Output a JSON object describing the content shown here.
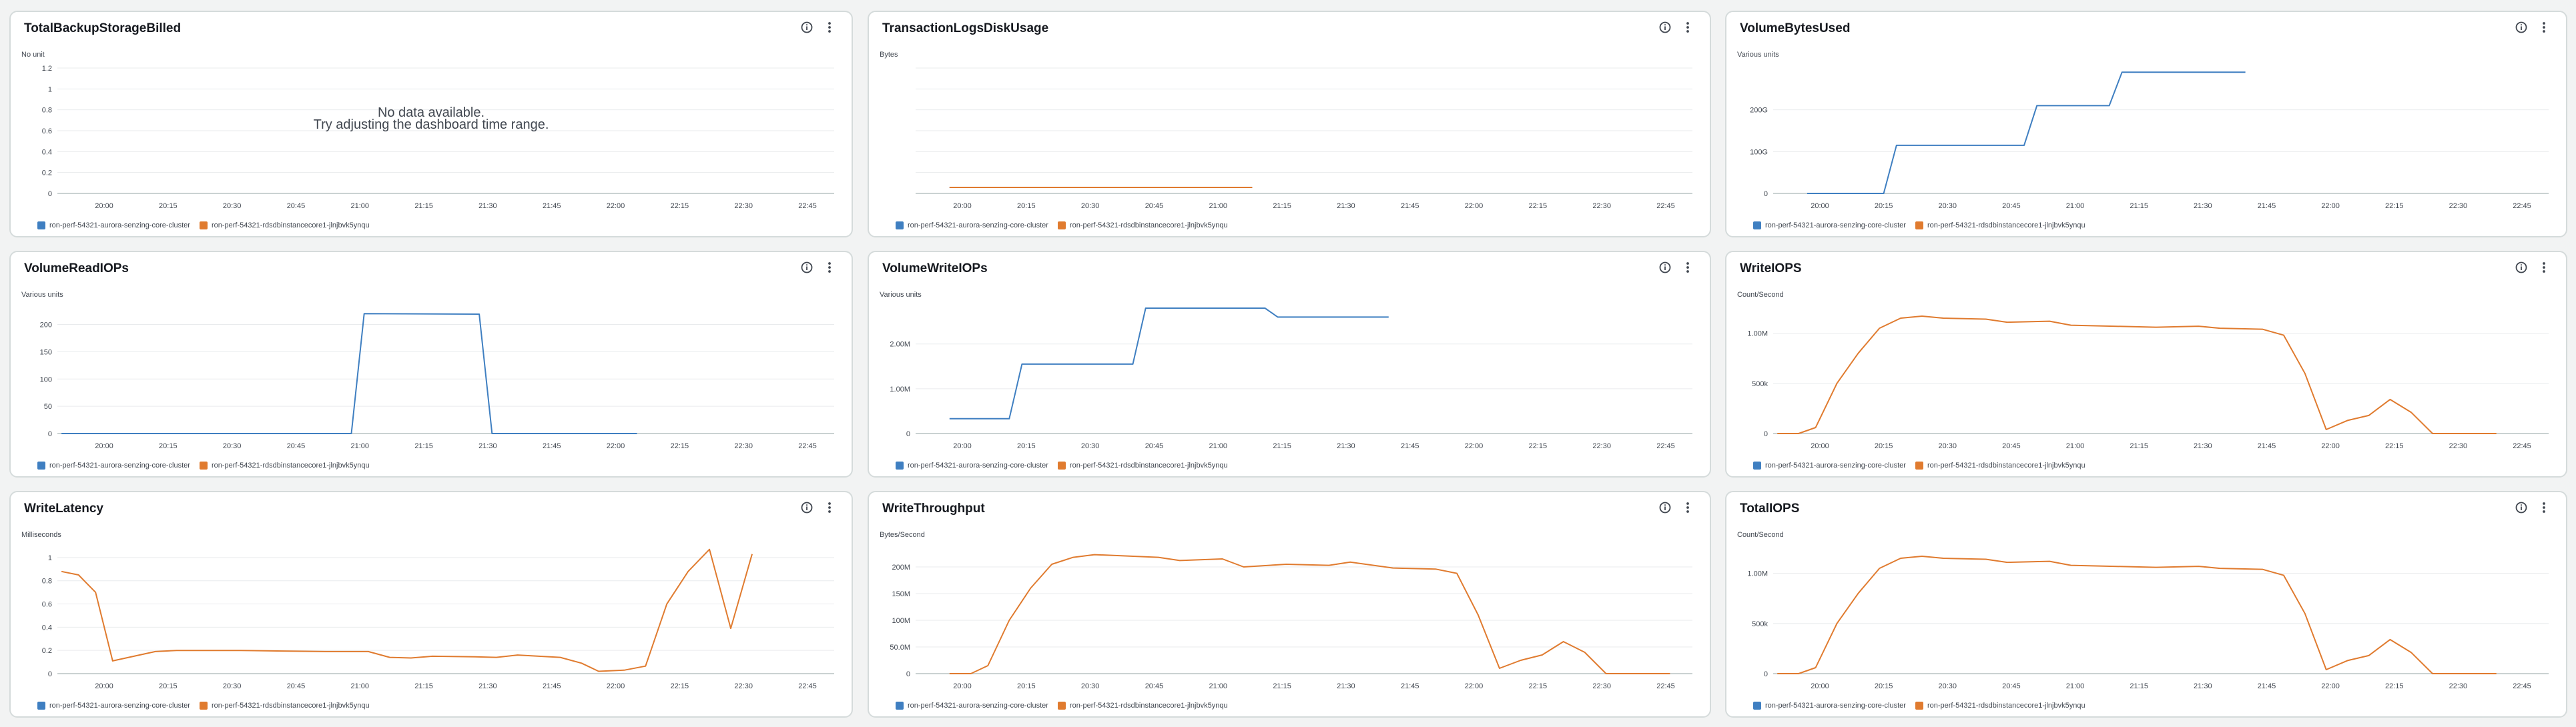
{
  "series_names": [
    "ron-perf-54321-aurora-senzing-core-cluster",
    "ron-perf-54321-rdsdbinstancecore1-jlnjbvk5ynqu"
  ],
  "series_colors": [
    "#3f7fc1",
    "#e07b2f"
  ],
  "x_ticks": [
    "20:00",
    "20:15",
    "20:30",
    "20:45",
    "21:00",
    "21:15",
    "21:30",
    "21:45",
    "22:00",
    "22:15",
    "22:30",
    "22:45"
  ],
  "panels": [
    {
      "title": "TotalBackupStorageBilled",
      "unit": "No unit",
      "no_data": [
        "No data available.",
        "Try adjusting the dashboard time range."
      ],
      "chart_data": {
        "type": "line",
        "y_ticks": [
          {
            "v": 0,
            "label": "0"
          },
          {
            "v": 0.2,
            "label": "0.2"
          },
          {
            "v": 0.4,
            "label": "0.4"
          },
          {
            "v": 0.6,
            "label": "0.6"
          },
          {
            "v": 0.8,
            "label": "0.8"
          },
          {
            "v": 1,
            "label": "1"
          },
          {
            "v": 1.2,
            "label": "1.2"
          }
        ],
        "ylim": [
          0,
          1.2
        ],
        "series": []
      }
    },
    {
      "title": "TransactionLogsDiskUsage",
      "unit": "Bytes",
      "chart_data": {
        "type": "line",
        "y_ticks": [],
        "ylim": [
          -0.05,
          1
        ],
        "series": [
          {
            "name": "ron-perf-54321-aurora-senzing-core-cluster",
            "points": [
              [
                -3,
                0
              ],
              [
                68,
                0
              ]
            ]
          },
          {
            "name": "ron-perf-54321-rdsdbinstancecore1-jlnjbvk5ynqu",
            "points": [
              [
                -3,
                0
              ],
              [
                68,
                0
              ]
            ]
          }
        ]
      }
    },
    {
      "title": "VolumeBytesUsed",
      "unit": "Various units",
      "chart_data": {
        "type": "line",
        "y_ticks": [
          {
            "v": 0,
            "label": "0"
          },
          {
            "v": 100,
            "label": "100G"
          },
          {
            "v": 200,
            "label": "200G"
          }
        ],
        "ylim": [
          0,
          300
        ],
        "series": [
          {
            "name": "ron-perf-54321-aurora-senzing-core-cluster",
            "points": [
              [
                -3,
                0
              ],
              [
                15,
                0
              ],
              [
                18,
                115
              ],
              [
                48,
                115
              ],
              [
                51,
                210
              ],
              [
                68,
                210
              ],
              [
                71,
                290
              ],
              [
                100,
                290
              ]
            ]
          }
        ]
      }
    },
    {
      "title": "VolumeReadIOPs",
      "unit": "Various units",
      "chart_data": {
        "type": "line",
        "y_ticks": [
          {
            "v": 0,
            "label": "0"
          },
          {
            "v": 50,
            "label": "50"
          },
          {
            "v": 100,
            "label": "100"
          },
          {
            "v": 150,
            "label": "150"
          },
          {
            "v": 200,
            "label": "200"
          }
        ],
        "ylim": [
          0,
          230
        ],
        "series": [
          {
            "name": "ron-perf-54321-aurora-senzing-core-cluster",
            "points": [
              [
                -10,
                0
              ],
              [
                58,
                0
              ],
              [
                61,
                220
              ],
              [
                88,
                219
              ],
              [
                91,
                0
              ],
              [
                125,
                0
              ]
            ]
          }
        ]
      }
    },
    {
      "title": "VolumeWriteIOPs",
      "unit": "Various units",
      "chart_data": {
        "type": "line",
        "y_ticks": [
          {
            "v": 0,
            "label": "0"
          },
          {
            "v": 1,
            "label": "1.00M"
          },
          {
            "v": 2,
            "label": "2.00M"
          }
        ],
        "ylim": [
          0,
          2.8
        ],
        "series": [
          {
            "name": "ron-perf-54321-aurora-senzing-core-cluster",
            "points": [
              [
                -3,
                0.33
              ],
              [
                11,
                0.33
              ],
              [
                14,
                1.55
              ],
              [
                40,
                1.55
              ],
              [
                43,
                2.8
              ],
              [
                71,
                2.8
              ],
              [
                74,
                2.6
              ],
              [
                100,
                2.6
              ]
            ]
          }
        ]
      }
    },
    {
      "title": "WriteIOPS",
      "unit": "Count/Second",
      "chart_data": {
        "type": "line",
        "y_ticks": [
          {
            "v": 0,
            "label": "0"
          },
          {
            "v": 500,
            "label": "500k"
          },
          {
            "v": 1000,
            "label": "1.00M"
          }
        ],
        "ylim": [
          0,
          1250
        ],
        "series": [
          {
            "name": "ron-perf-54321-rdsdbinstancecore1-jlnjbvk5ynqu",
            "points": [
              [
                -10,
                0
              ],
              [
                -5,
                0
              ],
              [
                -1,
                60
              ],
              [
                4,
                500
              ],
              [
                9,
                800
              ],
              [
                14,
                1050
              ],
              [
                19,
                1150
              ],
              [
                24,
                1170
              ],
              [
                29,
                1150
              ],
              [
                39,
                1140
              ],
              [
                44,
                1110
              ],
              [
                54,
                1120
              ],
              [
                59,
                1080
              ],
              [
                69,
                1070
              ],
              [
                79,
                1060
              ],
              [
                89,
                1070
              ],
              [
                94,
                1050
              ],
              [
                104,
                1040
              ],
              [
                109,
                980
              ],
              [
                114,
                600
              ],
              [
                119,
                40
              ],
              [
                124,
                130
              ],
              [
                129,
                180
              ],
              [
                134,
                340
              ],
              [
                139,
                210
              ],
              [
                144,
                0
              ],
              [
                159,
                0
              ]
            ]
          }
        ]
      }
    },
    {
      "title": "WriteLatency",
      "unit": "Milliseconds",
      "chart_data": {
        "type": "line",
        "y_ticks": [
          {
            "v": 0,
            "label": "0"
          },
          {
            "v": 0.2,
            "label": "0.2"
          },
          {
            "v": 0.4,
            "label": "0.4"
          },
          {
            "v": 0.6,
            "label": "0.6"
          },
          {
            "v": 0.8,
            "label": "0.8"
          },
          {
            "v": 1,
            "label": "1"
          }
        ],
        "ylim": [
          0,
          1.08
        ],
        "series": [
          {
            "name": "ron-perf-54321-rdsdbinstancecore1-jlnjbvk5ynqu",
            "points": [
              [
                -10,
                0.88
              ],
              [
                -6,
                0.85
              ],
              [
                -2,
                0.7
              ],
              [
                2,
                0.11
              ],
              [
                7,
                0.15
              ],
              [
                12,
                0.19
              ],
              [
                17,
                0.2
              ],
              [
                32,
                0.2
              ],
              [
                42,
                0.195
              ],
              [
                52,
                0.19
              ],
              [
                62,
                0.19
              ],
              [
                67,
                0.14
              ],
              [
                72,
                0.135
              ],
              [
                77,
                0.15
              ],
              [
                87,
                0.145
              ],
              [
                92,
                0.14
              ],
              [
                97,
                0.16
              ],
              [
                102,
                0.15
              ],
              [
                107,
                0.14
              ],
              [
                112,
                0.09
              ],
              [
                116,
                0.02
              ],
              [
                122,
                0.03
              ],
              [
                127,
                0.065
              ],
              [
                132,
                0.6
              ],
              [
                137,
                0.88
              ],
              [
                142,
                1.07
              ],
              [
                147,
                0.39
              ],
              [
                152,
                1.03
              ]
            ]
          }
        ]
      }
    },
    {
      "title": "WriteThroughput",
      "unit": "Bytes/Second",
      "chart_data": {
        "type": "line",
        "y_ticks": [
          {
            "v": 0,
            "label": "0"
          },
          {
            "v": 50,
            "label": "50.0M"
          },
          {
            "v": 100,
            "label": "100M"
          },
          {
            "v": 150,
            "label": "150M"
          },
          {
            "v": 200,
            "label": "200M"
          }
        ],
        "ylim": [
          0,
          235
        ],
        "series": [
          {
            "name": "ron-perf-54321-rdsdbinstancecore1-jlnjbvk5ynqu",
            "points": [
              [
                -3,
                0
              ],
              [
                2,
                0
              ],
              [
                6,
                15
              ],
              [
                11,
                100
              ],
              [
                16,
                160
              ],
              [
                21,
                205
              ],
              [
                26,
                218
              ],
              [
                31,
                223
              ],
              [
                46,
                218
              ],
              [
                51,
                212
              ],
              [
                61,
                215
              ],
              [
                66,
                200
              ],
              [
                76,
                205
              ],
              [
                86,
                203
              ],
              [
                91,
                209
              ],
              [
                101,
                198
              ],
              [
                111,
                196
              ],
              [
                116,
                188
              ],
              [
                121,
                110
              ],
              [
                126,
                10
              ],
              [
                131,
                25
              ],
              [
                136,
                35
              ],
              [
                141,
                60
              ],
              [
                146,
                40
              ],
              [
                151,
                0
              ],
              [
                166,
                0
              ]
            ]
          }
        ]
      }
    },
    {
      "title": "TotalIOPS",
      "unit": "Count/Second",
      "chart_data": {
        "type": "line",
        "y_ticks": [
          {
            "v": 0,
            "label": "0"
          },
          {
            "v": 500,
            "label": "500k"
          },
          {
            "v": 1000,
            "label": "1.00M"
          }
        ],
        "ylim": [
          0,
          1250
        ],
        "series": [
          {
            "name": "ron-perf-54321-rdsdbinstancecore1-jlnjbvk5ynqu",
            "points": [
              [
                -10,
                0
              ],
              [
                -5,
                0
              ],
              [
                -1,
                60
              ],
              [
                4,
                500
              ],
              [
                9,
                800
              ],
              [
                14,
                1050
              ],
              [
                19,
                1150
              ],
              [
                24,
                1170
              ],
              [
                29,
                1150
              ],
              [
                39,
                1140
              ],
              [
                44,
                1110
              ],
              [
                54,
                1120
              ],
              [
                59,
                1080
              ],
              [
                69,
                1070
              ],
              [
                79,
                1060
              ],
              [
                89,
                1070
              ],
              [
                94,
                1050
              ],
              [
                104,
                1040
              ],
              [
                109,
                980
              ],
              [
                114,
                600
              ],
              [
                119,
                40
              ],
              [
                124,
                130
              ],
              [
                129,
                180
              ],
              [
                134,
                340
              ],
              [
                139,
                210
              ],
              [
                144,
                0
              ],
              [
                159,
                0
              ]
            ]
          }
        ]
      }
    }
  ]
}
